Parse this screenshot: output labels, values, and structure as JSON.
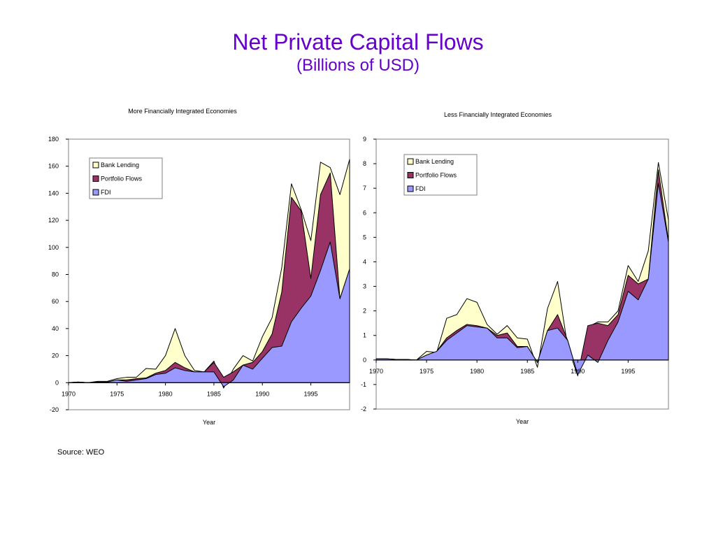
{
  "title": "Net Private Capital Flows",
  "subtitle": "(Billions of USD)",
  "source": "Source: WEO",
  "colors": {
    "title": "#6600cc",
    "Bank Lending": "#ffffcc",
    "Portfolio Flows": "#993366",
    "FDI": "#9999ff"
  },
  "chart_data": [
    {
      "type": "area",
      "stacked": true,
      "title": "More Financially Integrated Economies",
      "xlabel": "Year",
      "ylabel": "",
      "xlim": [
        1970,
        1999
      ],
      "ylim": [
        -20,
        180
      ],
      "yticks": [
        -20,
        0,
        20,
        40,
        60,
        80,
        100,
        120,
        140,
        160,
        180
      ],
      "xticks": [
        1970,
        1975,
        1980,
        1985,
        1990,
        1995
      ],
      "legend_position": "top-left",
      "x": [
        1970,
        1971,
        1972,
        1973,
        1974,
        1975,
        1976,
        1977,
        1978,
        1979,
        1980,
        1981,
        1982,
        1983,
        1984,
        1985,
        1986,
        1987,
        1988,
        1989,
        1990,
        1991,
        1992,
        1993,
        1994,
        1995,
        1996,
        1997,
        1998,
        1999
      ],
      "series": [
        {
          "name": "FDI",
          "values": [
            0,
            0.5,
            0,
            0.5,
            0.5,
            2,
            1,
            2,
            3,
            6,
            7,
            11,
            9,
            8,
            8,
            8,
            -3,
            2,
            13,
            10,
            18,
            26,
            27,
            45,
            55,
            64,
            83,
            104,
            62,
            84
          ]
        },
        {
          "name": "Portfolio Flows",
          "values": [
            0,
            0,
            0,
            0,
            0,
            0,
            1,
            1,
            0.5,
            1,
            2,
            4,
            2,
            0,
            0,
            7,
            7,
            6,
            0,
            5,
            5,
            10,
            40,
            92,
            72,
            13,
            56,
            51,
            0,
            0
          ]
        },
        {
          "name": "Bank Lending",
          "values": [
            0,
            0,
            0,
            0.5,
            0.5,
            1,
            2,
            1,
            7,
            3,
            11,
            25,
            9,
            1,
            0,
            1,
            -8,
            2,
            7,
            1,
            11,
            12,
            18,
            10,
            1,
            28,
            24,
            4,
            77,
            81
          ]
        }
      ]
    },
    {
      "type": "area",
      "stacked": true,
      "title": "Less Financially Integrated Economies",
      "xlabel": "Year",
      "ylabel": "",
      "xlim": [
        1970,
        1999
      ],
      "ylim": [
        -2,
        9
      ],
      "yticks": [
        -2,
        -1,
        0,
        1,
        2,
        3,
        4,
        5,
        6,
        7,
        8,
        9
      ],
      "xticks": [
        1970,
        1975,
        1980,
        1985,
        1990,
        1995
      ],
      "legend_position": "top-left",
      "x": [
        1970,
        1971,
        1972,
        1973,
        1974,
        1975,
        1976,
        1977,
        1978,
        1979,
        1980,
        1981,
        1982,
        1983,
        1984,
        1985,
        1986,
        1987,
        1988,
        1989,
        1990,
        1991,
        1992,
        1993,
        1994,
        1995,
        1996,
        1997,
        1998,
        1999
      ],
      "series": [
        {
          "name": "FDI",
          "values": [
            0.05,
            0.05,
            0.02,
            0.02,
            0,
            0.2,
            0.35,
            0.8,
            1.1,
            1.4,
            1.35,
            1.3,
            0.9,
            0.9,
            0.5,
            0.55,
            -0.1,
            1.2,
            1.3,
            0.8,
            -0.6,
            0.2,
            -0.1,
            0.8,
            1.55,
            2.8,
            2.45,
            3.3,
            7.2,
            4.8
          ]
        },
        {
          "name": "Portfolio Flows",
          "values": [
            0,
            0,
            0,
            0,
            0,
            0,
            0,
            0.1,
            0.1,
            0.05,
            0.05,
            0,
            0.1,
            0.2,
            0.05,
            0,
            0,
            0,
            0.55,
            0,
            0,
            1.2,
            1.6,
            0.6,
            0.3,
            0.65,
            0.65,
            0,
            0.55,
            0.05
          ]
        },
        {
          "name": "Bank Lending",
          "values": [
            0,
            0,
            0,
            0,
            0,
            0.15,
            -0.05,
            0.8,
            0.65,
            1.05,
            0.95,
            0.15,
            0.05,
            0.3,
            0.35,
            0.3,
            -0.2,
            0.9,
            1.35,
            -0.25,
            -0.05,
            -0.05,
            0.05,
            0.15,
            0.15,
            0.4,
            0.1,
            1.15,
            0.3,
            0.85
          ]
        }
      ]
    }
  ]
}
